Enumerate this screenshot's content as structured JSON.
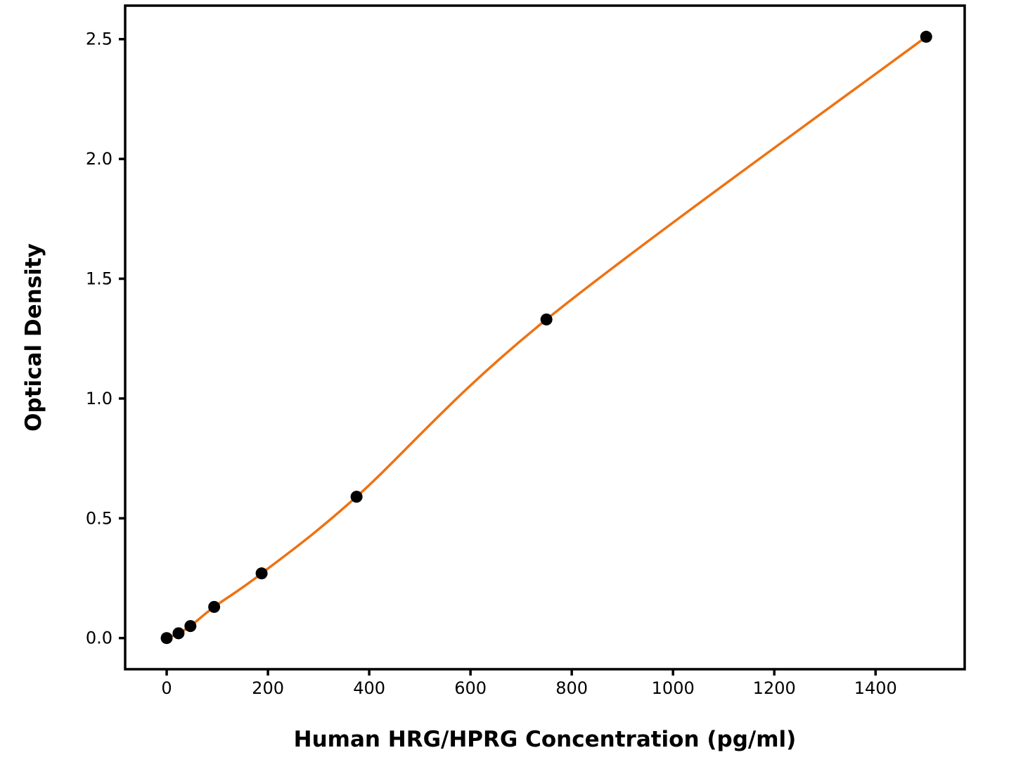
{
  "chart_data": {
    "type": "line",
    "title": "",
    "xlabel": "Human HRG/HPRG Concentration (pg/ml)",
    "ylabel": "Optical Density",
    "series": [
      {
        "name": "standard-curve",
        "x": [
          0,
          23.4,
          46.9,
          93.8,
          187.5,
          375,
          750,
          1500
        ],
        "y": [
          0.0,
          0.02,
          0.05,
          0.13,
          0.27,
          0.59,
          1.33,
          2.51
        ]
      }
    ],
    "xticks": [
      0,
      200,
      400,
      600,
      800,
      1000,
      1200,
      1400
    ],
    "yticks": [
      0.0,
      0.5,
      1.0,
      1.5,
      2.0,
      2.5
    ],
    "ytick_decimals": 1,
    "xlim": [
      -82,
      1576
    ],
    "ylim": [
      -0.13,
      2.64
    ],
    "grid": false,
    "legend": "none",
    "colors": {
      "curve": "#EE7212",
      "marker": "#000000",
      "axis": "#000000",
      "background": "#ffffff"
    },
    "marker_shape": "circle"
  }
}
